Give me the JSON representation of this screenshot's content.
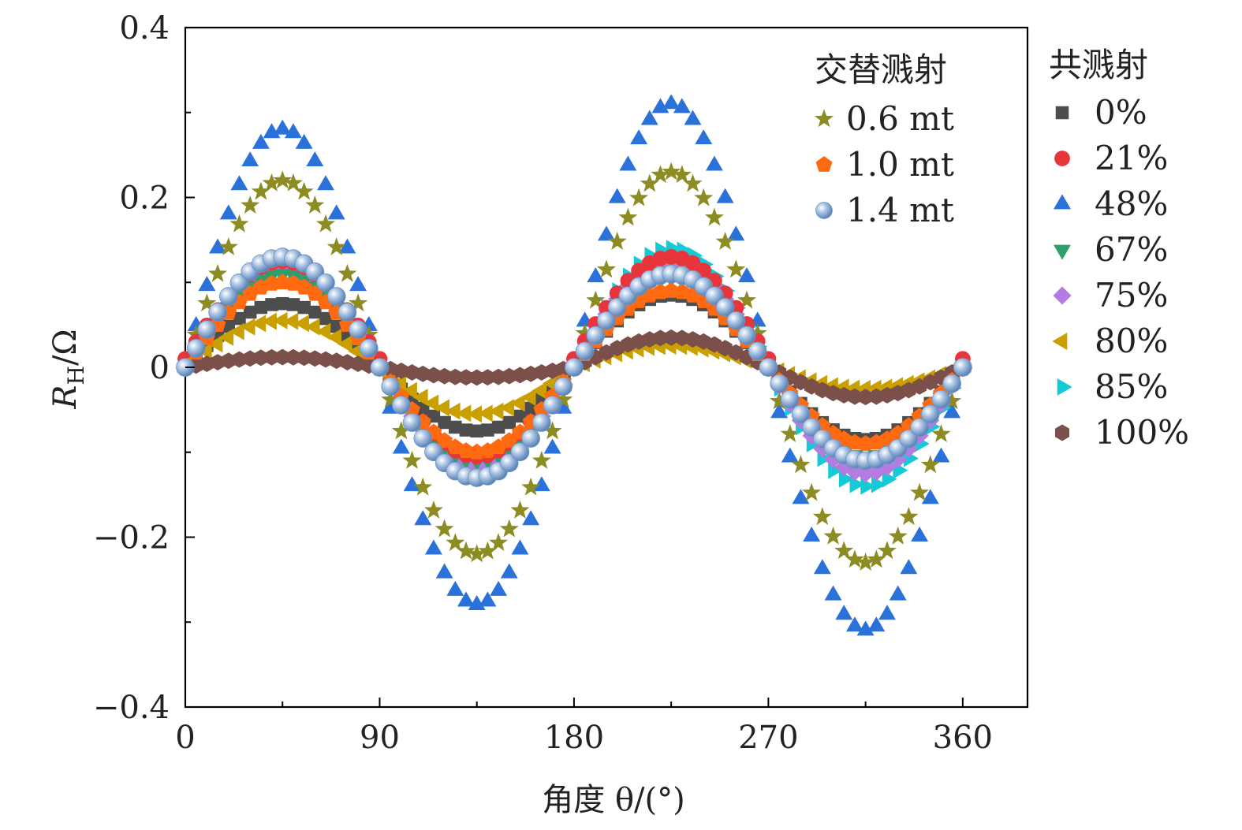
{
  "chart_data": {
    "type": "scatter",
    "title": "",
    "xlabel": "角度 θ/(°)",
    "ylabel": "R_H/Ω",
    "ylabel_main": "R",
    "ylabel_sub": "H",
    "ylabel_rest": "/Ω",
    "xlim": [
      0,
      390
    ],
    "ylim": [
      -0.4,
      0.4
    ],
    "x_ticks": [
      0,
      90,
      180,
      270,
      360
    ],
    "x_tick_labels": [
      "0",
      "90",
      "180",
      "270",
      "360"
    ],
    "y_ticks": [
      -0.4,
      -0.2,
      0,
      0.2,
      0.4
    ],
    "y_tick_labels": [
      "−0.4",
      "−0.2",
      "0",
      "0.2",
      "0.4"
    ],
    "grid": false,
    "x_step": 5,
    "x_range": [
      0,
      360
    ],
    "legends": [
      {
        "title": "交替溅射",
        "placement": "top-right inside",
        "entries": [
          "0.6 mt",
          "1.0 mt",
          "1.4 mt"
        ]
      },
      {
        "title": "共溅射",
        "placement": "right outside",
        "entries": [
          "0%",
          "21%",
          "48%",
          "67%",
          "75%",
          "80%",
          "85%",
          "100%"
        ]
      }
    ],
    "series": [
      {
        "name": "0%",
        "group": "共溅射",
        "marker": "square",
        "color": "#4d4d4d",
        "offset": 0.0,
        "amp_first": 0.075,
        "amp_second": 0.085
      },
      {
        "name": "21%",
        "group": "共溅射",
        "marker": "circle",
        "color": "#e8353c",
        "offset": 0.01,
        "amp_first": 0.115,
        "amp_second": 0.12
      },
      {
        "name": "48%",
        "group": "共溅射",
        "marker": "triangle-up",
        "color": "#2a72d9",
        "offset": 0.0,
        "amp_first": 0.28,
        "amp_second": 0.31
      },
      {
        "name": "67%",
        "group": "共溅射",
        "marker": "triangle-down",
        "color": "#2e9e6b",
        "offset": 0.0,
        "amp_first": 0.11,
        "amp_second": 0.105
      },
      {
        "name": "75%",
        "group": "共溅射",
        "marker": "diamond",
        "color": "#b47be0",
        "offset": 0.0,
        "amp_first": 0.115,
        "amp_second": 0.125
      },
      {
        "name": "80%",
        "group": "共溅射",
        "marker": "triangle-left",
        "color": "#c9a000",
        "offset": 0.0,
        "amp_first": 0.055,
        "amp_second": 0.025
      },
      {
        "name": "85%",
        "group": "共溅射",
        "marker": "triangle-right",
        "color": "#16c9d6",
        "offset": 0.0,
        "amp_first": 0.115,
        "amp_second": 0.14
      },
      {
        "name": "100%",
        "group": "共溅射",
        "marker": "hexagon",
        "color": "#7b4f4a",
        "offset": 0.0,
        "amp_first": 0.012,
        "amp_second": 0.035
      },
      {
        "name": "0.6 mt",
        "group": "交替溅射",
        "marker": "star",
        "color": "#8c8c22",
        "offset": 0.0,
        "amp_first": 0.22,
        "amp_second": 0.23
      },
      {
        "name": "1.0 mt",
        "group": "交替溅射",
        "marker": "pentagon",
        "color": "#ff6a10",
        "offset": 0.0,
        "amp_first": 0.1,
        "amp_second": 0.09
      },
      {
        "name": "1.4 mt",
        "group": "交替溅射",
        "marker": "sphere",
        "color": "#7ea3cf",
        "offset": 0.0,
        "amp_first": 0.13,
        "amp_second": 0.11
      }
    ]
  }
}
